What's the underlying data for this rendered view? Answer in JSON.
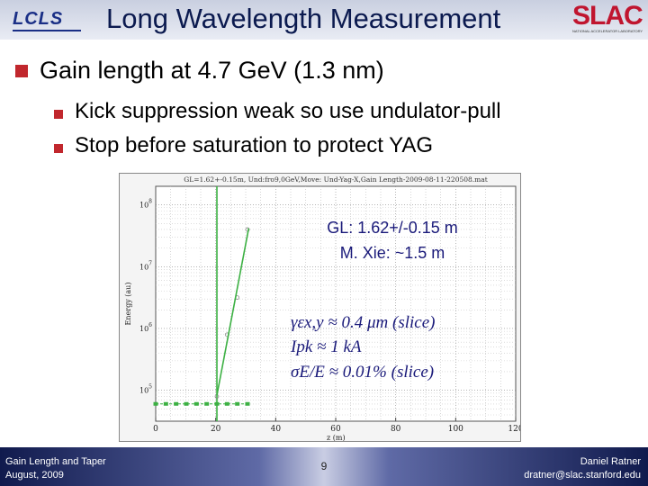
{
  "header": {
    "logo_left": "LCLS",
    "title": "Long Wavelength Measurement",
    "logo_right": "SLAC",
    "logo_right_sub": "NATIONAL ACCELERATOR LABORATORY"
  },
  "main_bullet": "Gain length at 4.7 GeV (1.3 nm)",
  "sub_bullets": [
    "Kick suppression weak so use undulator-pull",
    "Stop before saturation to protect YAG"
  ],
  "figure": {
    "plot_title": "GL=1.62+-0.15m, Und:fro9,0GeV,Move: Und-Yag-X,Gain Length-2009-08-11-220508.mat",
    "annotation_gl": "GL: 1.62+/-0.15 m",
    "annotation_xie": "M. Xie: ~1.5 m",
    "param_emit": "γεx,y ≈ 0.4 μm (slice)",
    "param_ipk": "Ipk ≈ 1 kA",
    "param_sigma": "σE/E ≈ 0.01% (slice)"
  },
  "chart_data": {
    "type": "scatter",
    "title": "GL=1.62+-0.15m, Und:fro9,0GeV,Move: Und-Yag-X,Gain Length-2009-08-11-220508.mat",
    "xlabel": "z (m)",
    "ylabel": "Energy (au)",
    "xlim": [
      0,
      120
    ],
    "ylim_log10": [
      4.5,
      8.3
    ],
    "log_y": true,
    "grid": true,
    "x_ticks": [
      "0",
      "20",
      "40",
      "60",
      "80",
      "100",
      "120"
    ],
    "y_ticks": [
      {
        "base": "10",
        "exp": "5",
        "value": 100000
      },
      {
        "base": "10",
        "exp": "6",
        "value": 1000000
      },
      {
        "base": "10",
        "exp": "7",
        "value": 10000000
      },
      {
        "base": "10",
        "exp": "8",
        "value": 100000000
      }
    ],
    "series": [
      {
        "kind": "noise_points",
        "color": "#3cb043",
        "points": [
          [
            0,
            4.78
          ],
          [
            3.4,
            4.78
          ],
          [
            6.8,
            4.78
          ],
          [
            10.2,
            4.78
          ],
          [
            13.6,
            4.78
          ],
          [
            17,
            4.78
          ],
          [
            20.4,
            4.78
          ],
          [
            23.8,
            4.78
          ],
          [
            27.2,
            4.78
          ],
          [
            30.6,
            4.78
          ]
        ]
      },
      {
        "kind": "measured_points",
        "color": "#888888",
        "points": [
          [
            20.4,
            4.9
          ],
          [
            23.8,
            5.9
          ],
          [
            27.2,
            6.5
          ],
          [
            30.6,
            7.6
          ]
        ]
      },
      {
        "kind": "fit_line",
        "color": "#3cb043",
        "points": [
          [
            20.4,
            4.92
          ],
          [
            31,
            7.62
          ]
        ]
      }
    ],
    "vertical_marker": {
      "x": 20.4,
      "color": "#3cb043"
    }
  },
  "footer": {
    "left_line1": "Gain Length and Taper",
    "left_line2": "August, 2009",
    "page": "9",
    "right_line1": "Daniel Ratner",
    "right_line2": "dratner@slac.stanford.edu"
  }
}
